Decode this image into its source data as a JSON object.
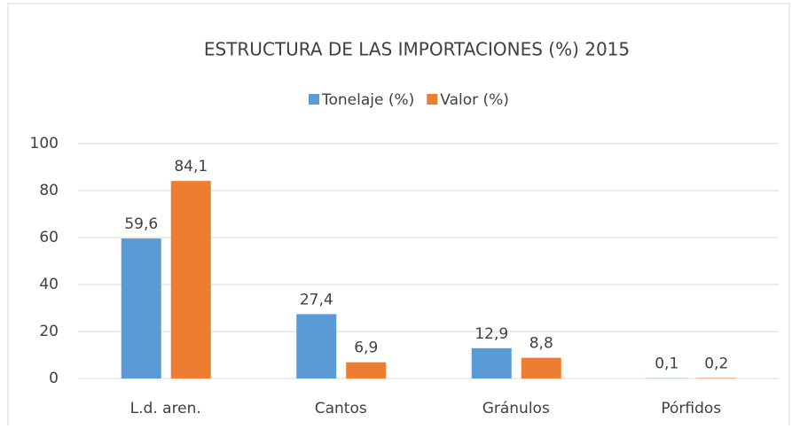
{
  "chart_data": {
    "type": "bar",
    "title": "ESTRUCTURA DE LAS IMPORTACIONES (%) 2015",
    "categories": [
      "L.d. aren.",
      "Cantos",
      "Gránulos",
      "Pórfidos"
    ],
    "series": [
      {
        "name": "Tonelaje (%)",
        "color": "#5b9bd5",
        "values": [
          59.6,
          27.4,
          12.9,
          0.1
        ],
        "value_labels": [
          "59,6",
          "27,4",
          "12,9",
          "0,1"
        ]
      },
      {
        "name": "Valor (%)",
        "color": "#ed7d31",
        "values": [
          84.1,
          6.9,
          8.8,
          0.2
        ],
        "value_labels": [
          "84,1",
          "6,9",
          "8,8",
          "0,2"
        ]
      }
    ],
    "ylim": [
      0,
      100
    ],
    "yticks": [
      0,
      20,
      40,
      60,
      80,
      100
    ],
    "grid": true,
    "legend": "top"
  }
}
